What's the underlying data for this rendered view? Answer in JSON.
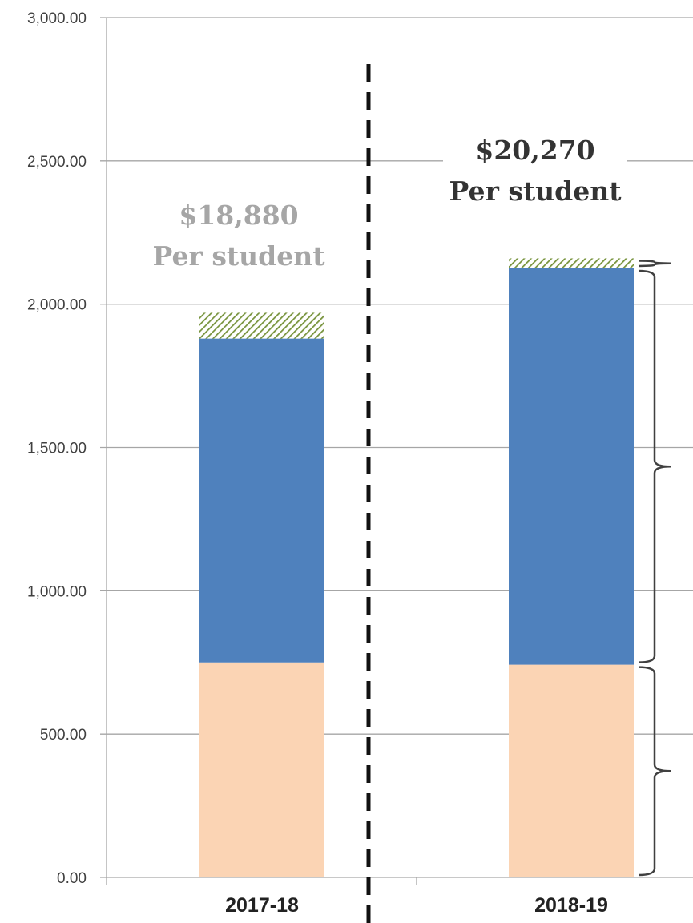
{
  "chart_data": {
    "type": "bar",
    "stacked": true,
    "categories": [
      "2017-18",
      "2018-19"
    ],
    "ylim": [
      0,
      3000
    ],
    "y_ticks": [
      "0.00",
      "500.00",
      "1,000.00",
      "1,500.00",
      "2,000.00",
      "2,500.00",
      "3,000.00"
    ],
    "grid": true,
    "series": [
      {
        "values": [
          750,
          742
        ],
        "color": "#fbd4b4",
        "pattern": "solid"
      },
      {
        "values": [
          1130,
          1383
        ],
        "color": "#4f81bd",
        "pattern": "solid"
      },
      {
        "values": [
          90,
          35
        ],
        "color": "#77933c",
        "pattern": "hatched"
      }
    ],
    "annotations": [
      {
        "category": "2017-18",
        "line1": "$18,880",
        "line2": "Per student",
        "color": "#a6a6a6"
      },
      {
        "category": "2018-19",
        "line1": "$20,270",
        "line2": "Per student",
        "color": "#333333"
      }
    ],
    "divider": {
      "style": "dashed",
      "between": [
        "2017-18",
        "2018-19"
      ]
    },
    "braces": [
      {
        "category": "2018-19",
        "series_index": 0
      },
      {
        "category": "2018-19",
        "series_index": 1
      },
      {
        "category": "2018-19",
        "series_index": 2
      }
    ]
  }
}
